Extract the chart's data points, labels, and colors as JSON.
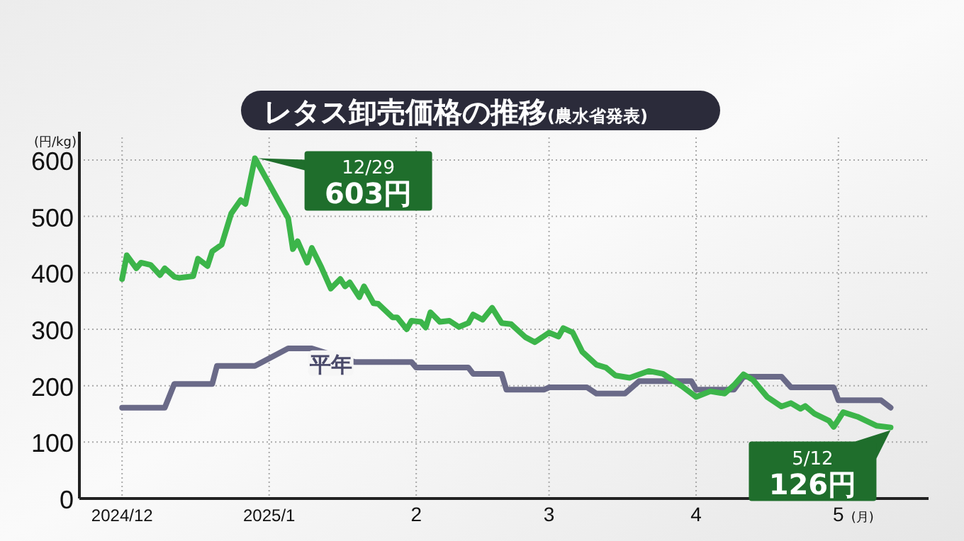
{
  "chart_data": {
    "type": "line",
    "title": "レタス卸売価格の推移",
    "subtitle": "(農水省発表)",
    "ylabel": "(円/kg)",
    "xlabel": "(月)",
    "xlim": [
      "2024-11-22",
      "2025-05-20"
    ],
    "ylim": [
      0,
      640
    ],
    "yticks": [
      0,
      100,
      200,
      300,
      400,
      500,
      600
    ],
    "xticks": [
      {
        "value": "2024-12-01",
        "label": "2024/12"
      },
      {
        "value": "2025-01-01",
        "label": "2025/1"
      },
      {
        "value": "2025-02-01",
        "label": "2"
      },
      {
        "value": "2025-03-01",
        "label": "3"
      },
      {
        "value": "2025-04-01",
        "label": "4"
      },
      {
        "value": "2025-05-01",
        "label": "5"
      }
    ],
    "grid": true,
    "line_style": "solid",
    "series": [
      {
        "color": "#6a6a88",
        "x": [
          "2024-12-01",
          "2024-12-10",
          "2024-12-12",
          "2024-12-20",
          "2024-12-21",
          "2024-12-29",
          "2025-01-05",
          "2025-01-10",
          "2025-01-19",
          "2025-01-31",
          "2025-02-01",
          "2025-02-12",
          "2025-02-13",
          "2025-02-19",
          "2025-02-20",
          "2025-02-28",
          "2025-03-01",
          "2025-03-09",
          "2025-03-11",
          "2025-03-17",
          "2025-03-20",
          "2025-03-31",
          "2025-04-01",
          "2025-04-09",
          "2025-04-11",
          "2025-04-19",
          "2025-04-21",
          "2025-04-30",
          "2025-05-01",
          "2025-05-10",
          "2025-05-12"
        ],
        "values": [
          161,
          161,
          203,
          203,
          235,
          235,
          266,
          266,
          242,
          242,
          232,
          232,
          221,
          221,
          193,
          193,
          197,
          197,
          186,
          186,
          208,
          208,
          193,
          193,
          216,
          216,
          197,
          197,
          174,
          174,
          161
        ]
      },
      {
        "color": "#3cb54a",
        "x": [
          "2024-12-01",
          "2024-12-02",
          "2024-12-04",
          "2024-12-05",
          "2024-12-07",
          "2024-12-09",
          "2024-12-10",
          "2024-12-12",
          "2024-12-13",
          "2024-12-16",
          "2024-12-17",
          "2024-12-19",
          "2024-12-20",
          "2024-12-22",
          "2024-12-24",
          "2024-12-26",
          "2024-12-27",
          "2024-12-29",
          "2025-01-05",
          "2025-01-06",
          "2025-01-07",
          "2025-01-09",
          "2025-01-10",
          "2025-01-12",
          "2025-01-14",
          "2025-01-16",
          "2025-01-17",
          "2025-01-18",
          "2025-01-20",
          "2025-01-21",
          "2025-01-23",
          "2025-01-24",
          "2025-01-27",
          "2025-01-28",
          "2025-01-30",
          "2025-01-31",
          "2025-02-02",
          "2025-02-03",
          "2025-02-04",
          "2025-02-06",
          "2025-02-08",
          "2025-02-10",
          "2025-02-12",
          "2025-02-13",
          "2025-02-15",
          "2025-02-17",
          "2025-02-19",
          "2025-02-21",
          "2025-02-24",
          "2025-02-26",
          "2025-03-01",
          "2025-03-03",
          "2025-03-04",
          "2025-03-06",
          "2025-03-08",
          "2025-03-11",
          "2025-03-13",
          "2025-03-15",
          "2025-03-18",
          "2025-03-22",
          "2025-03-25",
          "2025-03-29",
          "2025-04-01",
          "2025-04-04",
          "2025-04-07",
          "2025-04-09",
          "2025-04-11",
          "2025-04-13",
          "2025-04-16",
          "2025-04-19",
          "2025-04-21",
          "2025-04-23",
          "2025-04-24",
          "2025-04-26",
          "2025-04-29",
          "2025-04-30",
          "2025-05-02",
          "2025-05-05",
          "2025-05-09",
          "2025-05-12"
        ],
        "values": [
          389,
          431,
          408,
          418,
          414,
          396,
          408,
          393,
          391,
          394,
          425,
          412,
          438,
          450,
          505,
          529,
          522,
          603,
          497,
          442,
          456,
          418,
          444,
          410,
          372,
          389,
          376,
          383,
          357,
          376,
          346,
          345,
          321,
          321,
          300,
          315,
          313,
          303,
          330,
          313,
          315,
          304,
          311,
          326,
          317,
          338,
          311,
          309,
          286,
          277,
          294,
          287,
          302,
          294,
          260,
          237,
          232,
          218,
          214,
          226,
          221,
          199,
          180,
          190,
          186,
          201,
          220,
          210,
          180,
          163,
          169,
          159,
          164,
          150,
          138,
          127,
          153,
          145,
          129,
          126
        ]
      }
    ],
    "annotations": [
      {
        "text": "平年",
        "x": "2025-01-14",
        "y": 240
      },
      {
        "text": "12/29\n603円",
        "x": "2024-12-29",
        "y": 603
      },
      {
        "text": "5/12\n126円",
        "x": "2025-05-12",
        "y": 126
      }
    ]
  }
}
